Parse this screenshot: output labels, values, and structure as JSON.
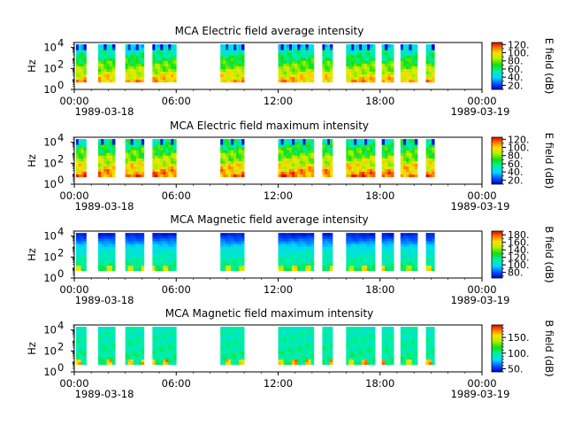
{
  "chart_data": [
    {
      "type": "heatmap",
      "title": "MCA  Electric field average intensity",
      "ylabel": "Hz",
      "yticks": [
        "10",
        "10",
        "10"
      ],
      "ytick_exponents": [
        "0",
        "2",
        "4"
      ],
      "yscale": "log",
      "ylim": [
        1,
        30000
      ],
      "xticks": [
        "00:00",
        "06:00",
        "12:00",
        "18:00",
        "00:00"
      ],
      "xdates": [
        "1989-03-18",
        "1989-03-19"
      ],
      "xlim": [
        "1989-03-18 00:00",
        "1989-03-19 00:00"
      ],
      "colorbar_label": "E field (dB)",
      "colorbar_ticks": [
        "20.",
        "40.",
        "60.",
        "80.",
        "100.",
        "120."
      ],
      "colorbar_range": [
        10,
        125
      ],
      "colormap": "rainbow (blue-cyan-green-yellow-red)",
      "variant": "average",
      "data_intervals_hours": [
        [
          0.1,
          0.7
        ],
        [
          1.4,
          2.4
        ],
        [
          3.0,
          4.1
        ],
        [
          4.6,
          6.0
        ],
        [
          8.6,
          10.0
        ],
        [
          12.0,
          14.1
        ],
        [
          14.6,
          15.2
        ],
        [
          16.0,
          17.7
        ],
        [
          18.1,
          18.8
        ],
        [
          19.2,
          20.2
        ],
        [
          20.7,
          21.2
        ]
      ]
    },
    {
      "type": "heatmap",
      "title": "MCA  Electric field maximum intensity",
      "ylabel": "Hz",
      "yticks": [
        "10",
        "10",
        "10"
      ],
      "ytick_exponents": [
        "0",
        "2",
        "4"
      ],
      "yscale": "log",
      "ylim": [
        1,
        30000
      ],
      "xticks": [
        "00:00",
        "06:00",
        "12:00",
        "18:00",
        "00:00"
      ],
      "xdates": [
        "1989-03-18",
        "1989-03-19"
      ],
      "xlim": [
        "1989-03-18 00:00",
        "1989-03-19 00:00"
      ],
      "colorbar_label": "E field (dB)",
      "colorbar_ticks": [
        "20.",
        "40.",
        "60.",
        "80.",
        "100.",
        "120."
      ],
      "colorbar_range": [
        10,
        125
      ],
      "colormap": "rainbow (blue-cyan-green-yellow-red)",
      "variant": "maximum",
      "data_intervals_hours": [
        [
          0.1,
          0.7
        ],
        [
          1.4,
          2.4
        ],
        [
          3.0,
          4.1
        ],
        [
          4.6,
          6.0
        ],
        [
          8.6,
          10.0
        ],
        [
          12.0,
          14.1
        ],
        [
          14.6,
          15.2
        ],
        [
          16.0,
          17.7
        ],
        [
          18.1,
          18.8
        ],
        [
          19.2,
          20.2
        ],
        [
          20.7,
          21.2
        ]
      ]
    },
    {
      "type": "heatmap",
      "title": "MCA  Magnetic field average intensity",
      "ylabel": "Hz",
      "yticks": [
        "10",
        "10",
        "10"
      ],
      "ytick_exponents": [
        "0",
        "2",
        "4"
      ],
      "yscale": "log",
      "ylim": [
        1,
        30000
      ],
      "xticks": [
        "00:00",
        "06:00",
        "12:00",
        "18:00",
        "00:00"
      ],
      "xdates": [
        "1989-03-18",
        "1989-03-19"
      ],
      "xlim": [
        "1989-03-18 00:00",
        "1989-03-19 00:00"
      ],
      "colorbar_label": "B field (dB)",
      "colorbar_ticks": [
        "80.",
        "100.",
        "120.",
        "140.",
        "160.",
        "180."
      ],
      "colorbar_range": [
        65,
        190
      ],
      "colormap": "rainbow (blue-cyan-green-yellow-red)",
      "variant": "magavg",
      "data_intervals_hours": [
        [
          0.1,
          0.7
        ],
        [
          1.4,
          2.4
        ],
        [
          3.0,
          4.1
        ],
        [
          4.6,
          6.0
        ],
        [
          8.6,
          10.0
        ],
        [
          12.0,
          14.1
        ],
        [
          14.6,
          15.2
        ],
        [
          16.0,
          17.7
        ],
        [
          18.1,
          18.8
        ],
        [
          19.2,
          20.2
        ],
        [
          20.7,
          21.2
        ]
      ]
    },
    {
      "type": "heatmap",
      "title": "MCA  Magnetic field maximum intensity",
      "ylabel": "Hz",
      "yticks": [
        "10",
        "10",
        "10"
      ],
      "ytick_exponents": [
        "0",
        "2",
        "4"
      ],
      "yscale": "log",
      "ylim": [
        1,
        30000
      ],
      "xticks": [
        "00:00",
        "06:00",
        "12:00",
        "18:00",
        "00:00"
      ],
      "xdates": [
        "1989-03-18",
        "1989-03-19"
      ],
      "xlim": [
        "1989-03-18 00:00",
        "1989-03-19 00:00"
      ],
      "colorbar_label": "B field (dB)",
      "colorbar_ticks": [
        "50.",
        "100.",
        "150."
      ],
      "colorbar_range": [
        40,
        190
      ],
      "colormap": "rainbow (blue-cyan-green-yellow-red)",
      "variant": "magmax",
      "data_intervals_hours": [
        [
          0.1,
          0.7
        ],
        [
          1.4,
          2.4
        ],
        [
          3.0,
          4.1
        ],
        [
          4.6,
          6.0
        ],
        [
          8.6,
          10.0
        ],
        [
          12.0,
          14.1
        ],
        [
          14.6,
          15.2
        ],
        [
          16.0,
          17.7
        ],
        [
          18.1,
          18.8
        ],
        [
          19.2,
          20.2
        ],
        [
          20.7,
          21.2
        ]
      ]
    }
  ]
}
